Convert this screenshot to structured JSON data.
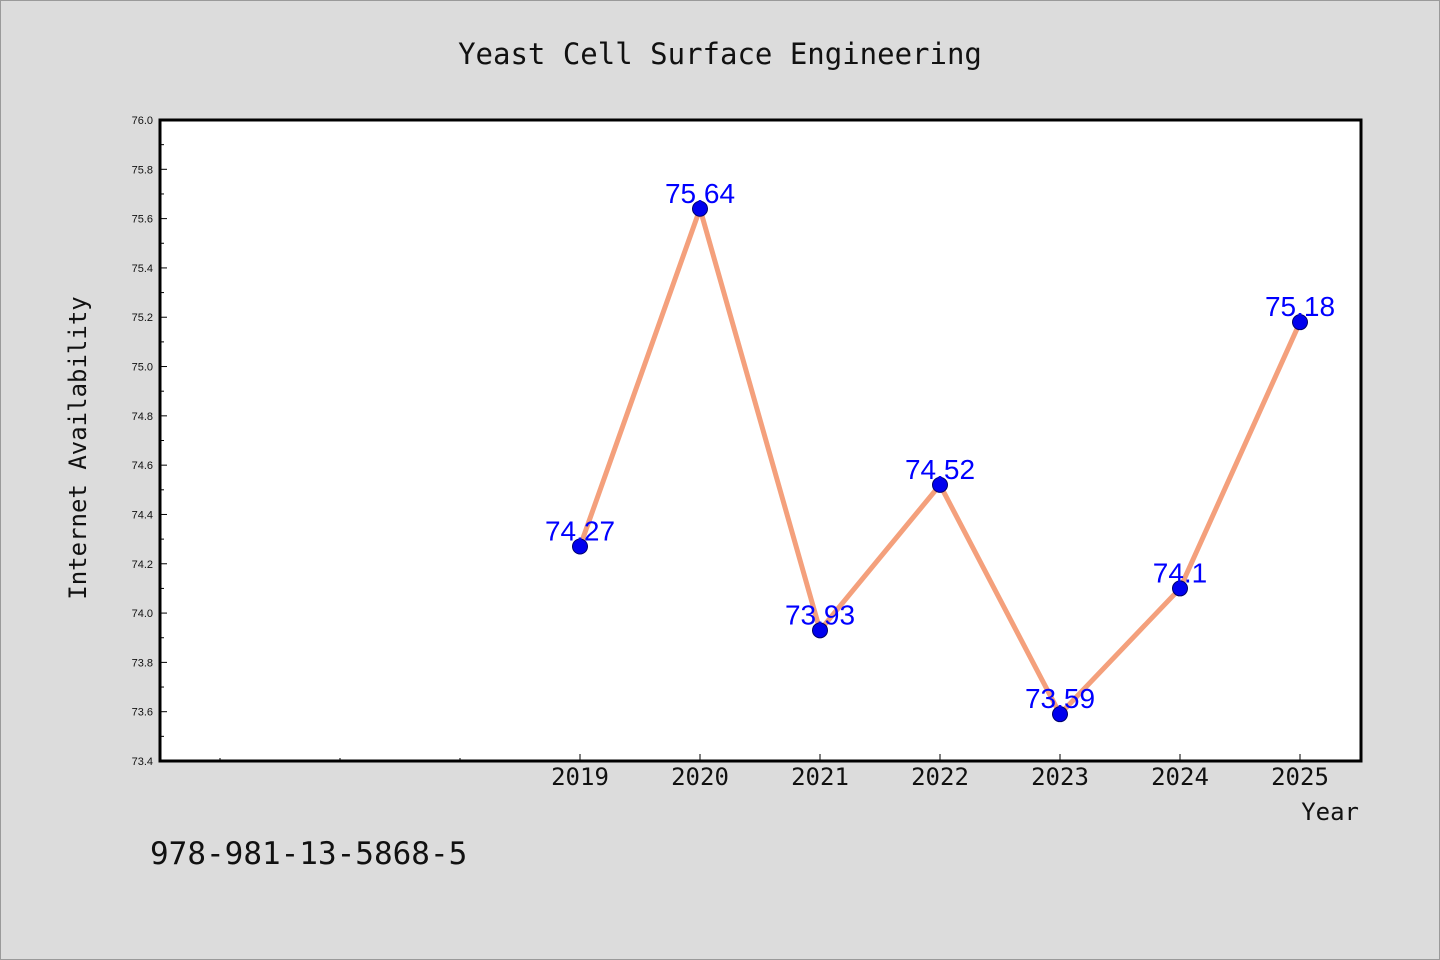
{
  "chart_data": {
    "type": "line",
    "title": "Yeast Cell Surface Engineering",
    "xlabel": "Year",
    "ylabel": "Internet Availability",
    "categories": [
      "2019",
      "2020",
      "2021",
      "2022",
      "2023",
      "2024",
      "2025"
    ],
    "series": [
      {
        "values": [
          74.27,
          75.64,
          73.93,
          74.52,
          73.59,
          74.1,
          75.18
        ],
        "data_labels": [
          "74.27",
          "75.64",
          "73.93",
          "74.52",
          "73.59",
          "74.1",
          "75.18"
        ]
      }
    ],
    "ylim": [
      73.4,
      76.0
    ],
    "yticks": [
      "73.4",
      "73.6",
      "73.8",
      "74.0",
      "74.2",
      "74.4",
      "74.6",
      "74.8",
      "75.0",
      "75.2",
      "75.4",
      "75.6",
      "75.8",
      "76.0"
    ],
    "grid": false,
    "legend": "none",
    "colors": {
      "line": "#f4a07c",
      "marker_fill": "#0000ee",
      "marker_edge": "#00006a",
      "data_label": "#0000ff",
      "background": "#dcdcdc",
      "plot_background": "#ffffff"
    }
  },
  "footer": {
    "isbn": "978-981-13-5868-5"
  }
}
